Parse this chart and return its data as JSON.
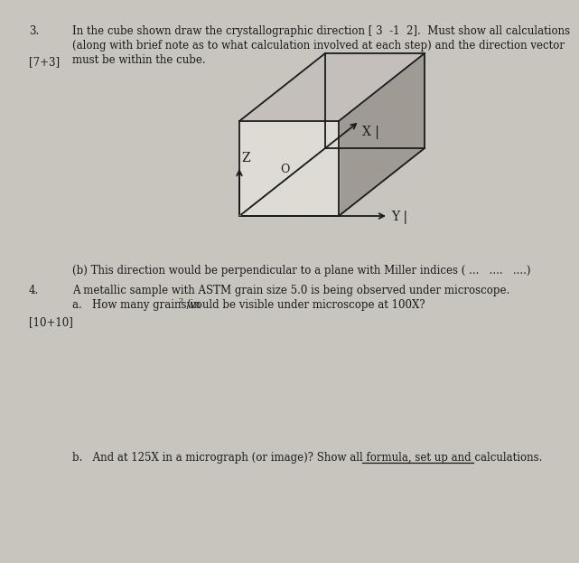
{
  "bg_color": "#c8c5bf",
  "text_color": "#1a1a1a",
  "q3_number": "3.",
  "q3_marks": "[7+3]",
  "q3_text_line1": "In the cube shown draw the crystallographic direction [ 3  -1  2].  Must show all calculations",
  "q3_text_line2": "(along with brief note as to what calculation involved at each step) and the direction vector",
  "q3_text_line3": "must be within the cube.",
  "q3b_text": "(b) This direction would be perpendicular to a plane with Miller indices ( ...   ....   ....)",
  "q4_number": "4.",
  "q4_marks": "[10+10]",
  "q4_text_line1": "A metallic sample with ASTM grain size 5.0 is being observed under microscope.",
  "q4_text_line2a": "a.   How many grains/in",
  "q4_text_line2b": "2",
  "q4_text_line2c": " would be visible under microscope at 100X?",
  "q4b_text": "b.   And at 125X in a micrograph (or image)? Show all formula, set up and calculations.",
  "cube_edge_color": "#1a1a1a",
  "front_face_color": "#dedad4",
  "right_face_color": "#a09a94",
  "top_face_color": "#c4bfba",
  "hidden_edge_color": "#888880",
  "page_bg": "#c0bdb7"
}
